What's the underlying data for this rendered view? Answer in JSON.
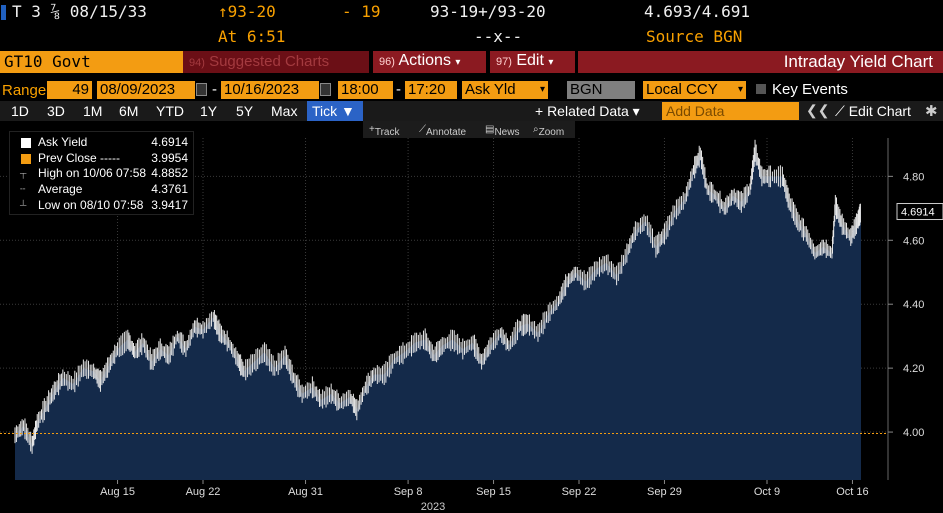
{
  "header": {
    "ticker": "T 3 ⅞ 08/15/33",
    "price": "↑93-20",
    "change": "- 19",
    "bid_ask_price": "93-19+/93-20",
    "bid_ask_yield": "4.693/4.691",
    "time": "At 6:51",
    "size": "--x--",
    "source": "Source BGN"
  },
  "function_bar": {
    "ticker_field": "GT10 Govt",
    "suggested_num": "94)",
    "suggested_label": "Suggested Charts",
    "actions_num": "96)",
    "actions_label": "Actions",
    "edit_num": "97)",
    "edit_label": "Edit",
    "title": "Intraday Yield Chart"
  },
  "range_row": {
    "label": "Range",
    "days": "49",
    "start_date": "08/09/2023",
    "end_date": "10/16/2023",
    "start_time": "18:00",
    "end_time": "17:20",
    "field": "Ask Yld",
    "source": "BGN",
    "currency": "Local CCY",
    "key_events": "Key Events"
  },
  "period_row": {
    "periods": [
      "1D",
      "3D",
      "1M",
      "6M",
      "YTD",
      "1Y",
      "5Y",
      "Max"
    ],
    "tick_label": "Tick ▼",
    "related_data": "+ Related Data ▾",
    "add_data_placeholder": "Add Data",
    "arrows": "❮❮",
    "edit_chart": "⟋ Edit Chart",
    "gear": "✱"
  },
  "toolbar": {
    "track": "Track",
    "annotate": "Annotate",
    "news": "News",
    "zoom": "Zoom"
  },
  "legend": {
    "ask_yield_label": "Ask Yield",
    "ask_yield_value": "4.6914",
    "prev_close_label": "Prev Close -----",
    "prev_close_value": "3.9954",
    "high_label": "High on 10/06 07:58",
    "high_value": "4.8852",
    "avg_label": "Average",
    "avg_value": "4.3761",
    "low_label": "Low on 08/10 07:58",
    "low_value": "3.9417"
  },
  "colors": {
    "amber": "#f9a100",
    "area_fill": "#142a4a",
    "prev_close_line": "#f39c12"
  },
  "chart_data": {
    "type": "area",
    "series_name": "Ask Yield",
    "last_label": "4.6914",
    "prev_close": 3.9954,
    "ylim": [
      3.85,
      4.92
    ],
    "y_ticks": [
      4.0,
      4.2,
      4.4,
      4.6,
      4.8
    ],
    "y_tick_labels": [
      "4.00",
      "4.20",
      "4.40",
      "4.60",
      "4.80"
    ],
    "x_tick_labels": [
      "Aug 15",
      "Aug 22",
      "Aug 31",
      "Sep 8",
      "Sep 15",
      "Sep 22",
      "Sep 29",
      "Oct 9",
      "Oct 16"
    ],
    "x_tick_index": [
      6,
      11,
      17,
      23,
      28,
      33,
      38,
      44,
      49
    ],
    "year_label": "2023",
    "x_range": [
      0,
      49.5
    ],
    "points": [
      [
        0.0,
        3.99
      ],
      [
        0.5,
        4.02
      ],
      [
        1.0,
        3.96
      ],
      [
        1.3,
        4.03
      ],
      [
        1.8,
        4.08
      ],
      [
        2.3,
        4.13
      ],
      [
        2.8,
        4.17
      ],
      [
        3.4,
        4.15
      ],
      [
        4.0,
        4.2
      ],
      [
        4.6,
        4.19
      ],
      [
        5.0,
        4.16
      ],
      [
        5.5,
        4.21
      ],
      [
        6.0,
        4.26
      ],
      [
        6.6,
        4.29
      ],
      [
        7.0,
        4.25
      ],
      [
        7.5,
        4.28
      ],
      [
        8.0,
        4.22
      ],
      [
        8.5,
        4.26
      ],
      [
        9.0,
        4.24
      ],
      [
        9.5,
        4.3
      ],
      [
        10.0,
        4.26
      ],
      [
        10.5,
        4.33
      ],
      [
        11.0,
        4.32
      ],
      [
        11.6,
        4.36
      ],
      [
        12.0,
        4.31
      ],
      [
        12.5,
        4.28
      ],
      [
        13.0,
        4.23
      ],
      [
        13.4,
        4.19
      ],
      [
        14.0,
        4.22
      ],
      [
        14.6,
        4.25
      ],
      [
        15.2,
        4.2
      ],
      [
        15.8,
        4.24
      ],
      [
        16.3,
        4.17
      ],
      [
        16.8,
        4.12
      ],
      [
        17.4,
        4.14
      ],
      [
        17.9,
        4.1
      ],
      [
        18.5,
        4.12
      ],
      [
        19.0,
        4.09
      ],
      [
        19.6,
        4.11
      ],
      [
        20.0,
        4.07
      ],
      [
        20.5,
        4.14
      ],
      [
        21.0,
        4.18
      ],
      [
        21.6,
        4.18
      ],
      [
        22.2,
        4.23
      ],
      [
        22.8,
        4.25
      ],
      [
        23.4,
        4.28
      ],
      [
        24.0,
        4.29
      ],
      [
        24.5,
        4.24
      ],
      [
        25.0,
        4.27
      ],
      [
        25.6,
        4.29
      ],
      [
        26.2,
        4.26
      ],
      [
        26.8,
        4.28
      ],
      [
        27.3,
        4.22
      ],
      [
        27.8,
        4.27
      ],
      [
        28.4,
        4.31
      ],
      [
        28.9,
        4.27
      ],
      [
        29.5,
        4.33
      ],
      [
        30.0,
        4.34
      ],
      [
        30.6,
        4.31
      ],
      [
        31.2,
        4.37
      ],
      [
        31.8,
        4.41
      ],
      [
        32.3,
        4.47
      ],
      [
        32.8,
        4.5
      ],
      [
        33.4,
        4.47
      ],
      [
        34.0,
        4.51
      ],
      [
        34.6,
        4.53
      ],
      [
        35.2,
        4.49
      ],
      [
        35.8,
        4.56
      ],
      [
        36.3,
        4.63
      ],
      [
        36.9,
        4.66
      ],
      [
        37.5,
        4.58
      ],
      [
        38.0,
        4.62
      ],
      [
        38.6,
        4.69
      ],
      [
        39.2,
        4.73
      ],
      [
        39.7,
        4.82
      ],
      [
        40.1,
        4.87
      ],
      [
        40.5,
        4.76
      ],
      [
        41.0,
        4.74
      ],
      [
        41.5,
        4.7
      ],
      [
        42.0,
        4.74
      ],
      [
        42.5,
        4.72
      ],
      [
        43.0,
        4.76
      ],
      [
        43.3,
        4.88
      ],
      [
        43.7,
        4.8
      ],
      [
        44.2,
        4.8
      ],
      [
        44.9,
        4.8
      ],
      [
        45.3,
        4.72
      ],
      [
        45.8,
        4.66
      ],
      [
        46.3,
        4.62
      ],
      [
        46.8,
        4.56
      ],
      [
        47.3,
        4.58
      ],
      [
        47.8,
        4.56
      ],
      [
        48.0,
        4.71
      ],
      [
        48.4,
        4.65
      ],
      [
        48.9,
        4.61
      ],
      [
        49.3,
        4.66
      ],
      [
        49.5,
        4.69
      ]
    ]
  }
}
